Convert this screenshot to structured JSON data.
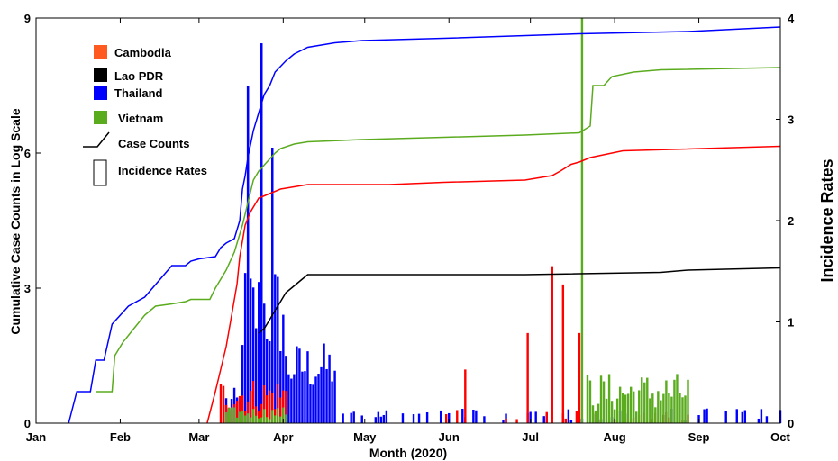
{
  "chart_data": {
    "type": "line+bar (dual axis)",
    "xlabel": "Month (2020)",
    "ylabel_left": "Cumulative Case Counts in Log Scale",
    "ylabel_right": "Incidence Rates",
    "x_ticks": [
      "Jan",
      "Feb",
      "Mar",
      "Apr",
      "May",
      "Jun",
      "Jul",
      "Aug",
      "Sep",
      "Oct"
    ],
    "y_left_ticks": [
      "0",
      "3",
      "6",
      "9"
    ],
    "y_right_ticks": [
      "0",
      "1",
      "2",
      "3",
      "4"
    ],
    "ylim_left": [
      0,
      9
    ],
    "ylim_right": [
      0,
      4
    ],
    "xlim_days": [
      0,
      274
    ],
    "legend": {
      "placement": "top-left",
      "entries": [
        {
          "label": "Cambodia",
          "color": "#ff5a1f",
          "kind": "swatch"
        },
        {
          "label": "Lao PDR",
          "color": "#000000",
          "kind": "swatch"
        },
        {
          "label": "Thailand",
          "color": "#0000ff",
          "kind": "swatch"
        },
        {
          "label": "Vietnam",
          "color": "#5aab1e",
          "kind": "swatch"
        },
        {
          "label": "Case Counts",
          "color": "#000000",
          "kind": "line"
        },
        {
          "label": "Incidence Rates",
          "color": "#000000",
          "kind": "box"
        }
      ]
    },
    "series_colors": {
      "Cambodia": "#ff0000",
      "Lao PDR": "#000000",
      "Thailand": "#0000ff",
      "Vietnam": "#5aab1e"
    },
    "case_count_lines": [
      {
        "country": "Thailand",
        "points": [
          [
            12,
            0
          ],
          [
            15,
            0.7
          ],
          [
            20,
            0.7
          ],
          [
            22,
            1.4
          ],
          [
            25,
            1.4
          ],
          [
            28,
            2.2
          ],
          [
            31,
            2.4
          ],
          [
            34,
            2.6
          ],
          [
            40,
            2.8
          ],
          [
            50,
            3.5
          ],
          [
            55,
            3.5
          ],
          [
            57,
            3.6
          ],
          [
            60,
            3.65
          ],
          [
            66,
            3.7
          ],
          [
            68,
            3.9
          ],
          [
            70,
            4.0
          ],
          [
            73,
            4.1
          ],
          [
            75,
            4.5
          ],
          [
            76,
            5.2
          ],
          [
            77,
            5.5
          ],
          [
            78,
            5.9
          ],
          [
            80,
            6.5
          ],
          [
            82,
            6.9
          ],
          [
            84,
            7.3
          ],
          [
            86,
            7.5
          ],
          [
            88,
            7.8
          ],
          [
            92,
            8.05
          ],
          [
            95,
            8.2
          ],
          [
            100,
            8.35
          ],
          [
            110,
            8.45
          ],
          [
            120,
            8.5
          ],
          [
            150,
            8.55
          ],
          [
            200,
            8.65
          ],
          [
            240,
            8.7
          ],
          [
            274,
            8.8
          ]
        ]
      },
      {
        "country": "Vietnam",
        "points": [
          [
            22,
            0.7
          ],
          [
            28,
            0.7
          ],
          [
            29,
            1.5
          ],
          [
            32,
            1.8
          ],
          [
            36,
            2.1
          ],
          [
            40,
            2.4
          ],
          [
            44,
            2.6
          ],
          [
            50,
            2.65
          ],
          [
            55,
            2.7
          ],
          [
            57,
            2.75
          ],
          [
            64,
            2.75
          ],
          [
            66,
            3.0
          ],
          [
            70,
            3.4
          ],
          [
            73,
            3.8
          ],
          [
            76,
            4.4
          ],
          [
            78,
            4.9
          ],
          [
            80,
            5.4
          ],
          [
            82,
            5.6
          ],
          [
            85,
            5.8
          ],
          [
            88,
            6.0
          ],
          [
            90,
            6.1
          ],
          [
            95,
            6.2
          ],
          [
            100,
            6.25
          ],
          [
            120,
            6.3
          ],
          [
            150,
            6.35
          ],
          [
            180,
            6.4
          ],
          [
            200,
            6.45
          ],
          [
            204,
            6.6
          ],
          [
            205,
            7.5
          ],
          [
            209,
            7.5
          ],
          [
            212,
            7.7
          ],
          [
            220,
            7.8
          ],
          [
            230,
            7.85
          ],
          [
            274,
            7.9
          ]
        ]
      },
      {
        "country": "Cambodia",
        "points": [
          [
            63,
            0
          ],
          [
            66,
            0.7
          ],
          [
            68,
            1.2
          ],
          [
            70,
            1.7
          ],
          [
            72,
            2.4
          ],
          [
            74,
            3.1
          ],
          [
            75,
            3.7
          ],
          [
            77,
            4.4
          ],
          [
            79,
            4.7
          ],
          [
            82,
            5.0
          ],
          [
            86,
            5.1
          ],
          [
            90,
            5.2
          ],
          [
            95,
            5.25
          ],
          [
            100,
            5.3
          ],
          [
            130,
            5.3
          ],
          [
            150,
            5.35
          ],
          [
            180,
            5.4
          ],
          [
            190,
            5.5
          ],
          [
            193,
            5.6
          ],
          [
            197,
            5.75
          ],
          [
            200,
            5.8
          ],
          [
            204,
            5.9
          ],
          [
            212,
            6.0
          ],
          [
            216,
            6.05
          ],
          [
            274,
            6.15
          ]
        ]
      },
      {
        "country": "Lao PDR",
        "points": [
          [
            82,
            2.0
          ],
          [
            84,
            2.1
          ],
          [
            86,
            2.3
          ],
          [
            88,
            2.5
          ],
          [
            90,
            2.7
          ],
          [
            92,
            2.9
          ],
          [
            94,
            3.0
          ],
          [
            96,
            3.1
          ],
          [
            98,
            3.2
          ],
          [
            100,
            3.3
          ],
          [
            130,
            3.3
          ],
          [
            180,
            3.3
          ],
          [
            230,
            3.35
          ],
          [
            240,
            3.4
          ],
          [
            274,
            3.45
          ]
        ]
      }
    ],
    "incidence_peaks": [
      {
        "country": "Thailand",
        "day": 78,
        "value": 3.33
      },
      {
        "country": "Thailand",
        "day": 83,
        "value": 3.75
      },
      {
        "country": "Thailand",
        "day": 87,
        "value": 2.72
      },
      {
        "country": "Cambodia",
        "day": 190,
        "value": 1.55
      },
      {
        "country": "Cambodia",
        "day": 194,
        "value": 1.37
      },
      {
        "country": "Cambodia",
        "day": 181,
        "value": 0.89
      },
      {
        "country": "Cambodia",
        "day": 200,
        "value": 0.89
      },
      {
        "country": "Cambodia",
        "day": 158,
        "value": 0.53
      },
      {
        "country": "Vietnam",
        "day": 201,
        "value": 4.0
      }
    ]
  }
}
